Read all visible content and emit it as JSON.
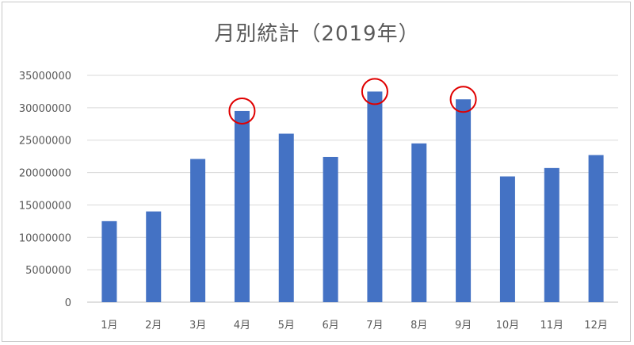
{
  "chart_data": {
    "type": "bar",
    "title": "月別統計（2019年）",
    "categories": [
      "1月",
      "2月",
      "3月",
      "4月",
      "5月",
      "6月",
      "7月",
      "8月",
      "9月",
      "10月",
      "11月",
      "12月"
    ],
    "values": [
      12500000,
      14000000,
      22100000,
      29500000,
      26000000,
      22400000,
      32500000,
      24500000,
      31300000,
      19400000,
      20700000,
      22700000
    ],
    "ylim": [
      0,
      35000000
    ],
    "yticks": [
      "0",
      "5000000",
      "10000000",
      "15000000",
      "20000000",
      "25000000",
      "30000000",
      "35000000"
    ],
    "highlighted": [
      "4月",
      "7月",
      "9月"
    ],
    "grid": true,
    "legend": "none",
    "colors": {
      "bar": "#4472C4",
      "grid": "#d9d9d9",
      "highlight": "#e00000"
    }
  }
}
